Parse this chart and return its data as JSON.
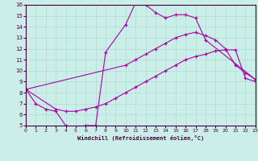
{
  "xlabel": "Windchill (Refroidissement éolien,°C)",
  "bg_color": "#cceee8",
  "grid_color": "#aaddcc",
  "line_color": "#aa00aa",
  "spine_color": "#440044",
  "xlim": [
    0,
    23
  ],
  "ylim": [
    5,
    16
  ],
  "xticks": [
    0,
    1,
    2,
    3,
    4,
    5,
    6,
    7,
    8,
    9,
    10,
    11,
    12,
    13,
    14,
    15,
    16,
    17,
    18,
    19,
    20,
    21,
    22,
    23
  ],
  "yticks": [
    5,
    6,
    7,
    8,
    9,
    10,
    11,
    12,
    13,
    14,
    15,
    16
  ],
  "series": [
    {
      "x": [
        0,
        1,
        2,
        3,
        4,
        5,
        6,
        7,
        8,
        10,
        11,
        12,
        13,
        14,
        15,
        16,
        17,
        18,
        23
      ],
      "y": [
        8.3,
        7.0,
        6.5,
        6.3,
        5.0,
        4.8,
        5.0,
        5.0,
        11.7,
        14.2,
        16.2,
        16.0,
        15.3,
        14.8,
        15.1,
        15.1,
        14.8,
        12.8,
        9.2
      ]
    },
    {
      "x": [
        0,
        3,
        4,
        5,
        6,
        7,
        8,
        9,
        10,
        11,
        12,
        13,
        14,
        15,
        16,
        17,
        18,
        19,
        20,
        21,
        22,
        23
      ],
      "y": [
        8.3,
        6.5,
        6.3,
        6.3,
        6.5,
        6.7,
        7.0,
        7.5,
        8.0,
        8.5,
        9.0,
        9.5,
        10.0,
        10.5,
        11.0,
        11.3,
        11.5,
        11.8,
        11.9,
        11.9,
        9.3,
        9.0
      ]
    },
    {
      "x": [
        0,
        10,
        11,
        12,
        13,
        14,
        15,
        16,
        17,
        18,
        19,
        20,
        21,
        22,
        23
      ],
      "y": [
        8.3,
        10.5,
        11.0,
        11.5,
        12.0,
        12.5,
        13.0,
        13.3,
        13.5,
        13.2,
        12.8,
        12.0,
        10.5,
        9.8,
        9.2
      ]
    }
  ]
}
